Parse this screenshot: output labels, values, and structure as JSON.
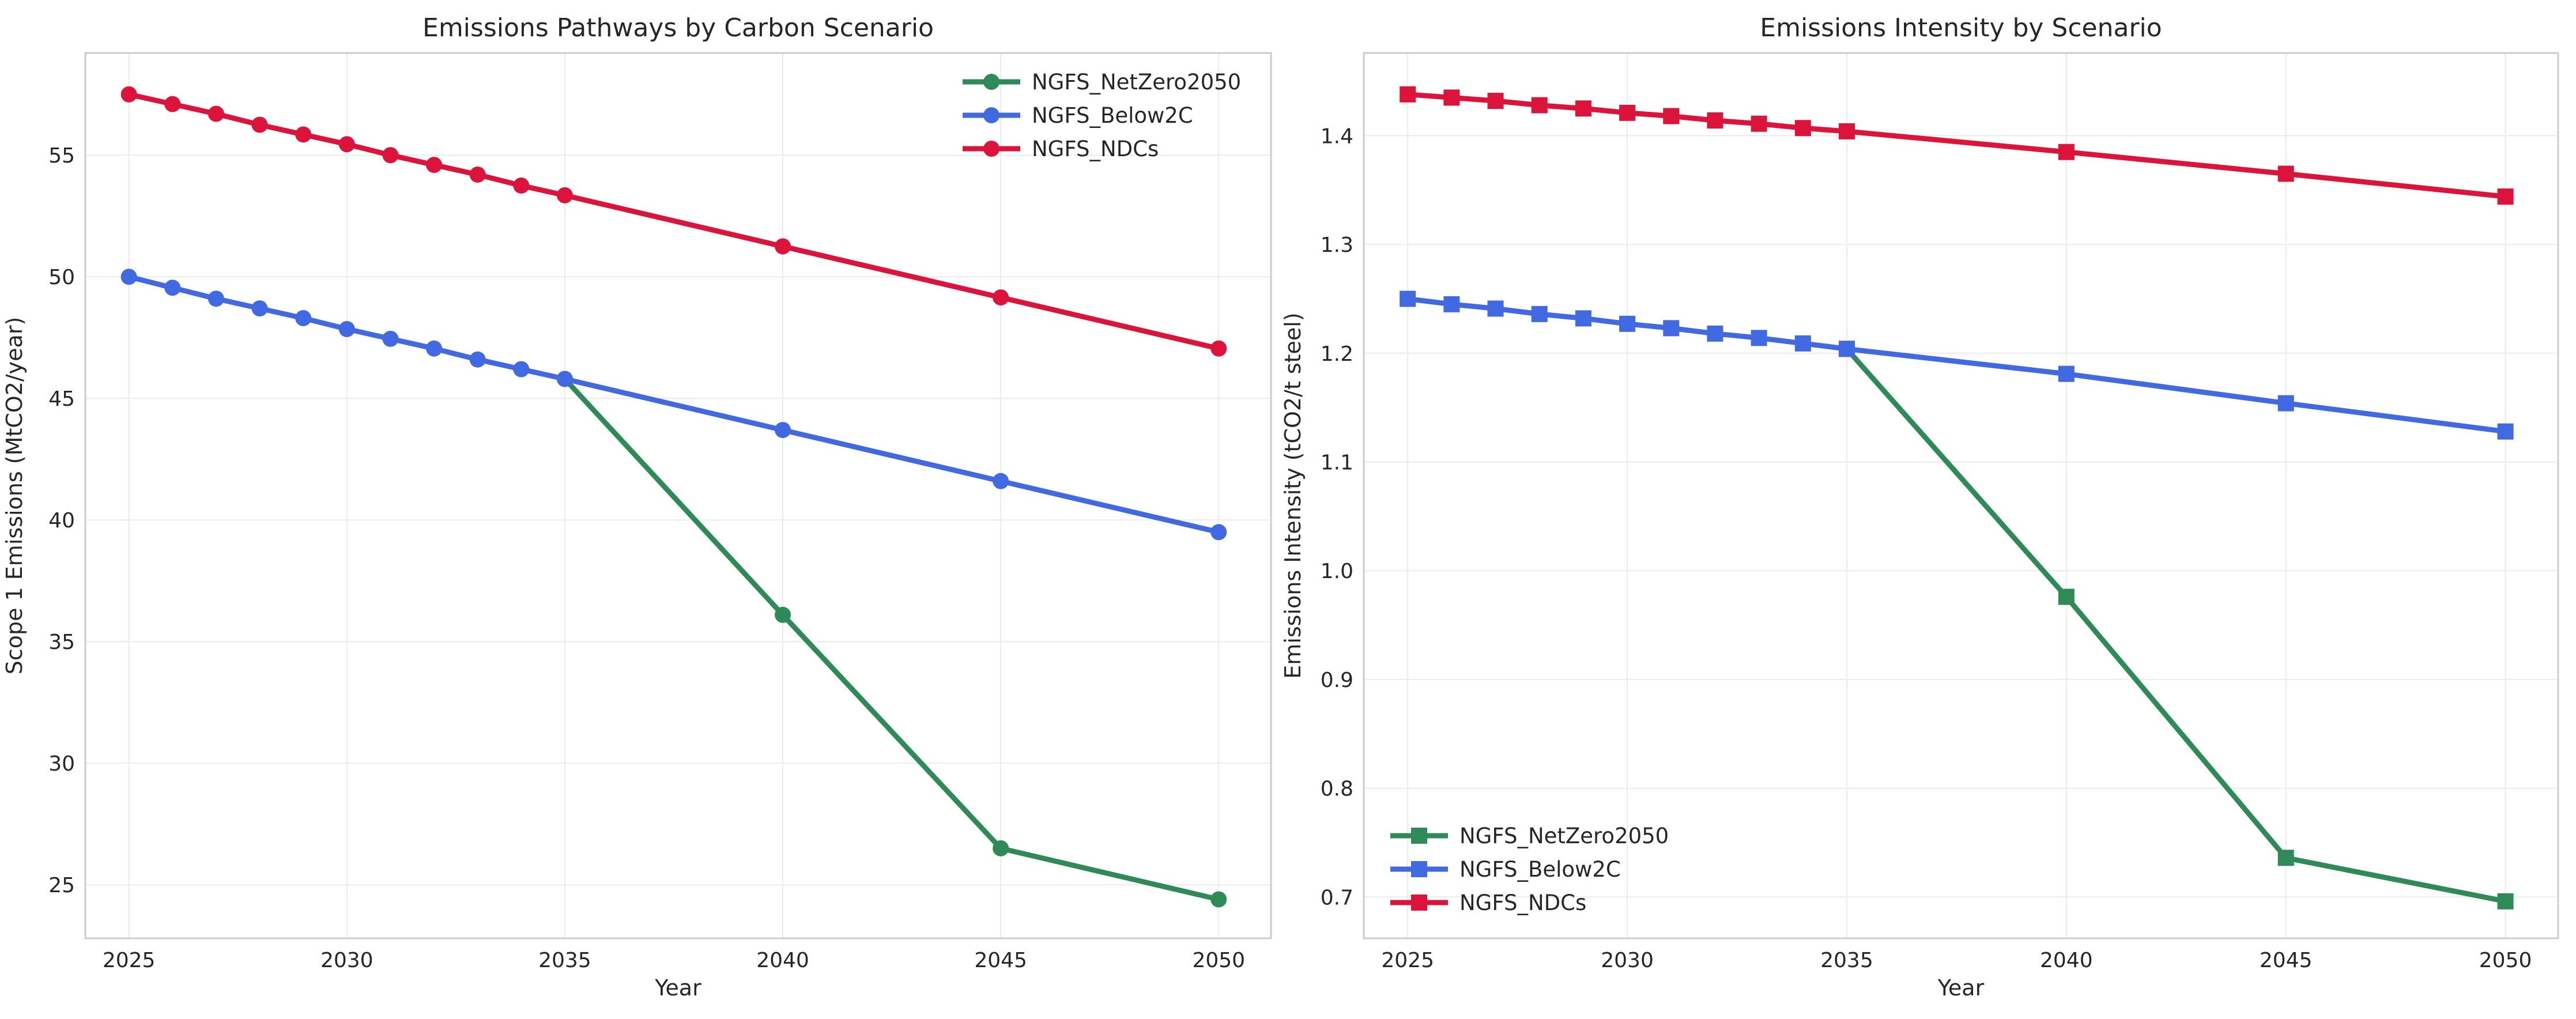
{
  "chart_data": [
    {
      "type": "line",
      "title": "Emissions Pathways by Carbon Scenario",
      "xlabel": "Year",
      "ylabel": "Scope 1 Emissions (MtCO2/year)",
      "xlim": [
        2024,
        2051.2
      ],
      "ylim": [
        22.8,
        59.2
      ],
      "xticks": [
        2025,
        2030,
        2035,
        2040,
        2045,
        2050
      ],
      "yticks": [
        25,
        30,
        35,
        40,
        45,
        50,
        55
      ],
      "grid": true,
      "legend_position": "top-right",
      "marker": "circle",
      "series": [
        {
          "name": "NGFS_NetZero2050",
          "color": "#2e8b57",
          "x": [
            2035,
            2040,
            2045,
            2050
          ],
          "y": [
            45.8,
            36.1,
            26.5,
            24.4
          ]
        },
        {
          "name": "NGFS_Below2C",
          "color": "#4169e1",
          "x": [
            2025,
            2026,
            2027,
            2028,
            2029,
            2030,
            2031,
            2032,
            2033,
            2034,
            2035,
            2040,
            2045,
            2050
          ],
          "y": [
            50.0,
            49.55,
            49.1,
            48.7,
            48.3,
            47.85,
            47.45,
            47.05,
            46.6,
            46.2,
            45.8,
            43.7,
            41.6,
            39.5
          ]
        },
        {
          "name": "NGFS_NDCs",
          "color": "#dc143c",
          "x": [
            2025,
            2026,
            2027,
            2028,
            2029,
            2030,
            2031,
            2032,
            2033,
            2034,
            2035,
            2040,
            2045,
            2050
          ],
          "y": [
            57.5,
            57.1,
            56.7,
            56.25,
            55.85,
            55.45,
            55.0,
            54.6,
            54.2,
            53.75,
            53.35,
            51.25,
            49.15,
            47.05
          ]
        }
      ]
    },
    {
      "type": "line",
      "title": "Emissions Intensity by Scenario",
      "xlabel": "Year",
      "ylabel": "Emissions Intensity (tCO2/t steel)",
      "xlim": [
        2024,
        2051.2
      ],
      "ylim": [
        0.662,
        1.476
      ],
      "xticks": [
        2025,
        2030,
        2035,
        2040,
        2045,
        2050
      ],
      "yticks": [
        0.7,
        0.8,
        0.9,
        1.0,
        1.1,
        1.2,
        1.3,
        1.4
      ],
      "ytick_labels": [
        "0.7",
        "0.8",
        "0.9",
        "1.0",
        "1.1",
        "1.2",
        "1.3",
        "1.4"
      ],
      "grid": true,
      "legend_position": "bottom-left",
      "marker": "square",
      "series": [
        {
          "name": "NGFS_NetZero2050",
          "color": "#2e8b57",
          "x": [
            2035,
            2040,
            2045,
            2050
          ],
          "y": [
            1.204,
            0.976,
            0.736,
            0.696
          ]
        },
        {
          "name": "NGFS_Below2C",
          "color": "#4169e1",
          "x": [
            2025,
            2026,
            2027,
            2028,
            2029,
            2030,
            2031,
            2032,
            2033,
            2034,
            2035,
            2040,
            2045,
            2050
          ],
          "y": [
            1.25,
            1.245,
            1.241,
            1.236,
            1.232,
            1.227,
            1.223,
            1.218,
            1.214,
            1.209,
            1.204,
            1.181,
            1.154,
            1.128
          ]
        },
        {
          "name": "NGFS_NDCs",
          "color": "#dc143c",
          "x": [
            2025,
            2026,
            2027,
            2028,
            2029,
            2030,
            2031,
            2032,
            2033,
            2034,
            2035,
            2040,
            2045,
            2050
          ],
          "y": [
            1.438,
            1.435,
            1.432,
            1.428,
            1.425,
            1.421,
            1.418,
            1.414,
            1.411,
            1.407,
            1.404,
            1.385,
            1.365,
            1.344
          ]
        }
      ]
    }
  ]
}
